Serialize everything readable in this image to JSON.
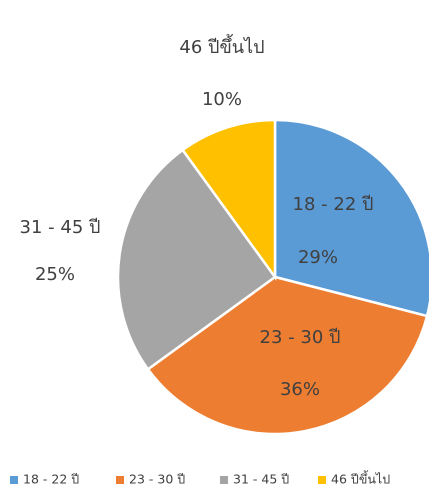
{
  "chart_data": {
    "type": "pie",
    "categories": [
      "18 - 22 ปี",
      "23 - 30 ปี",
      "31 - 45 ปี",
      "46 ปีขึ้นไป"
    ],
    "values": [
      29,
      36,
      25,
      10
    ],
    "value_labels": [
      "29%",
      "36%",
      "25%",
      "10%"
    ],
    "colors": [
      "#5b9bd5",
      "#ed7d31",
      "#a5a5a5",
      "#ffc000"
    ],
    "legend": "bottom"
  }
}
